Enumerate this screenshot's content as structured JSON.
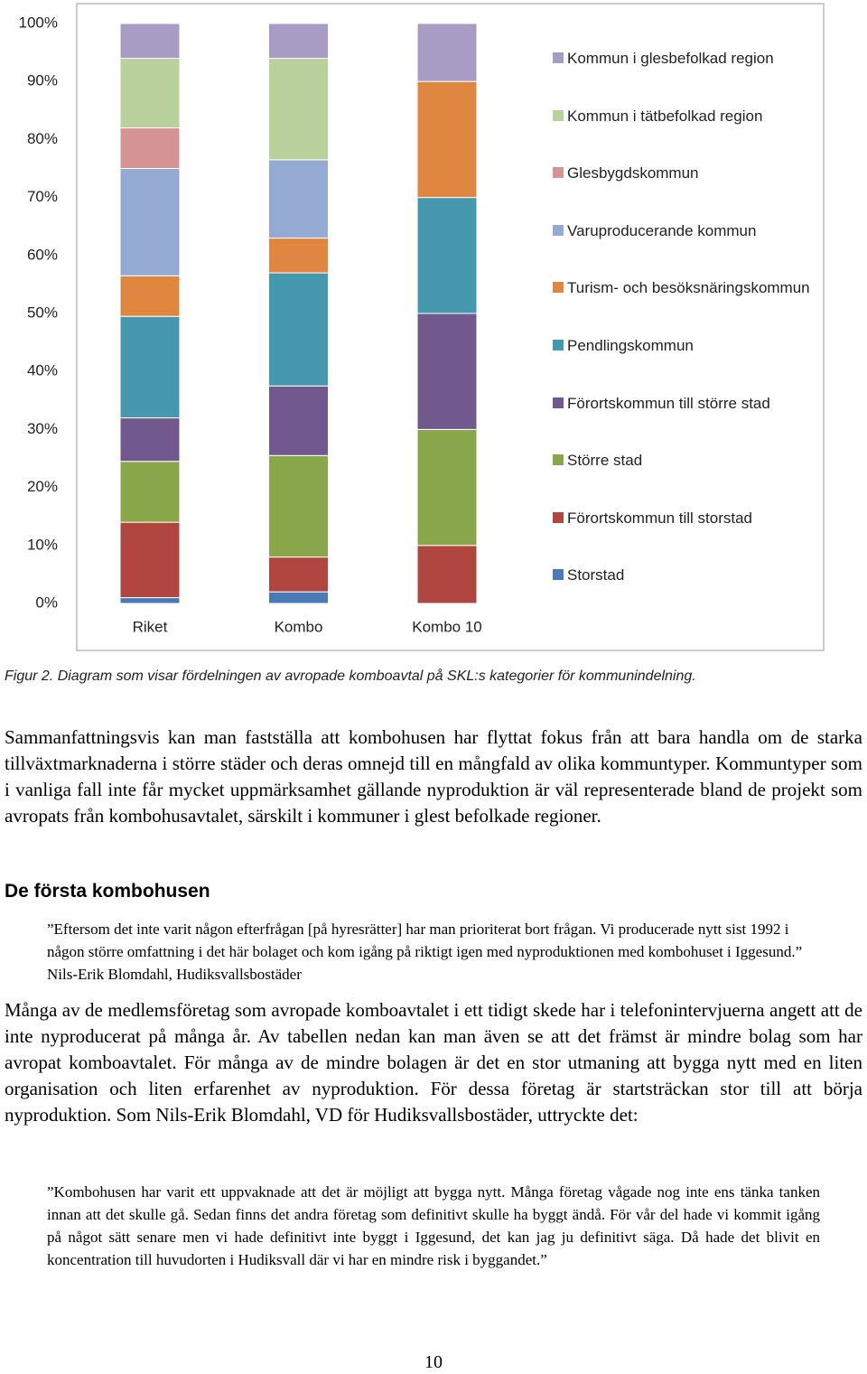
{
  "chart_data": {
    "type": "bar",
    "stacked": true,
    "categories": [
      "Riket",
      "Kombo",
      "Kombo 10"
    ],
    "series": [
      {
        "name": "Storstad",
        "color": "#4a7ab5",
        "values": [
          1,
          2,
          0
        ]
      },
      {
        "name": "Förortskommun till storstad",
        "color": "#b0463f",
        "values": [
          13,
          6,
          10
        ]
      },
      {
        "name": "Större stad",
        "color": "#8aa64a",
        "values": [
          10.5,
          17.5,
          20
        ]
      },
      {
        "name": "Förortskommun till större stad",
        "color": "#71598e",
        "values": [
          7.5,
          12,
          20
        ]
      },
      {
        "name": "Pendlingskommun",
        "color": "#4598ae",
        "values": [
          17.5,
          19.5,
          20
        ]
      },
      {
        "name": "Turism- och besöksnäringskommun",
        "color": "#df8740",
        "values": [
          7,
          6,
          20
        ]
      },
      {
        "name": "Varuproducerande kommun",
        "color": "#94aad3",
        "values": [
          18.5,
          13.5,
          0
        ]
      },
      {
        "name": "Glesbygdskommun",
        "color": "#d49494",
        "values": [
          7,
          0,
          0
        ]
      },
      {
        "name": "Kommun i tätbefolkad region",
        "color": "#b9d29c",
        "values": [
          12,
          17.5,
          0
        ]
      },
      {
        "name": "Kommun i glesbefolkad region",
        "color": "#a89cc4",
        "values": [
          6,
          6,
          10
        ]
      }
    ],
    "ylim": [
      0,
      100
    ],
    "yticks": [
      {
        "value": 0,
        "label": "0%"
      },
      {
        "value": 10,
        "label": "10%"
      },
      {
        "value": 20,
        "label": "20%"
      },
      {
        "value": 30,
        "label": "30%"
      },
      {
        "value": 40,
        "label": "40%"
      },
      {
        "value": 50,
        "label": "50%"
      },
      {
        "value": 60,
        "label": "60%"
      },
      {
        "value": 70,
        "label": "70%"
      },
      {
        "value": 80,
        "label": "80%"
      },
      {
        "value": 90,
        "label": "90%"
      },
      {
        "value": 100,
        "label": "100%"
      }
    ],
    "grid": false,
    "legend": "right"
  },
  "caption": "Figur 2. Diagram som visar fördelningen av avropade komboavtal på SKL:s kategorier för kommunindelning.",
  "paragraph_1": "Sammanfattningsvis kan man fastställa att kombohusen har flyttat fokus från att bara handla om de starka tillväxtmarknaderna i större städer och deras omnejd till en mångfald av olika kommuntyper. Kommuntyper som i vanliga fall inte får mycket uppmärksamhet gällande nyproduktion är väl representerade bland de projekt som avropats från kombohusavtalet, särskilt i kommuner i glest befolkade regioner.",
  "heading": "De första kombohusen",
  "quote_1": "”Eftersom det inte varit någon efterfrågan [på hyresrätter] har man prioriterat bort frågan. Vi producerade nytt sist 1992 i någon större omfattning i det här bolaget och kom igång på riktigt igen med nyproduktionen med kombohuset i Iggesund.” Nils-Erik Blomdahl, Hudiksvallsbostäder",
  "paragraph_2": "Många av de medlemsföretag som avropade komboavtalet i ett tidigt skede har i telefonintervjuerna angett att de inte nyproducerat på många år. Av tabellen nedan kan man även se att det främst är mindre bolag som har avropat komboavtalet. För många av de mindre bolagen är det en stor utmaning att bygga nytt med en liten organisation och liten erfarenhet av nyproduktion. För dessa företag är startsträckan stor till att börja nyproduktion. Som Nils-Erik Blomdahl, VD för Hudiksvallsbostäder, uttryckte det:",
  "quote_2": "”Kombohusen har varit ett uppvaknade att det är möjligt att bygga nytt. Många företag vågade nog inte ens tänka tanken innan att det skulle gå. Sedan finns det andra företag som definitivt skulle ha byggt ändå. För vår del hade vi kommit igång på något sätt senare men vi hade definitivt inte byggt i Iggesund, det kan jag ju definitivt säga. Då hade det blivit en koncentration till huvudorten i Hudiksvall där vi har en mindre risk i byggandet.”",
  "page_number": 10
}
